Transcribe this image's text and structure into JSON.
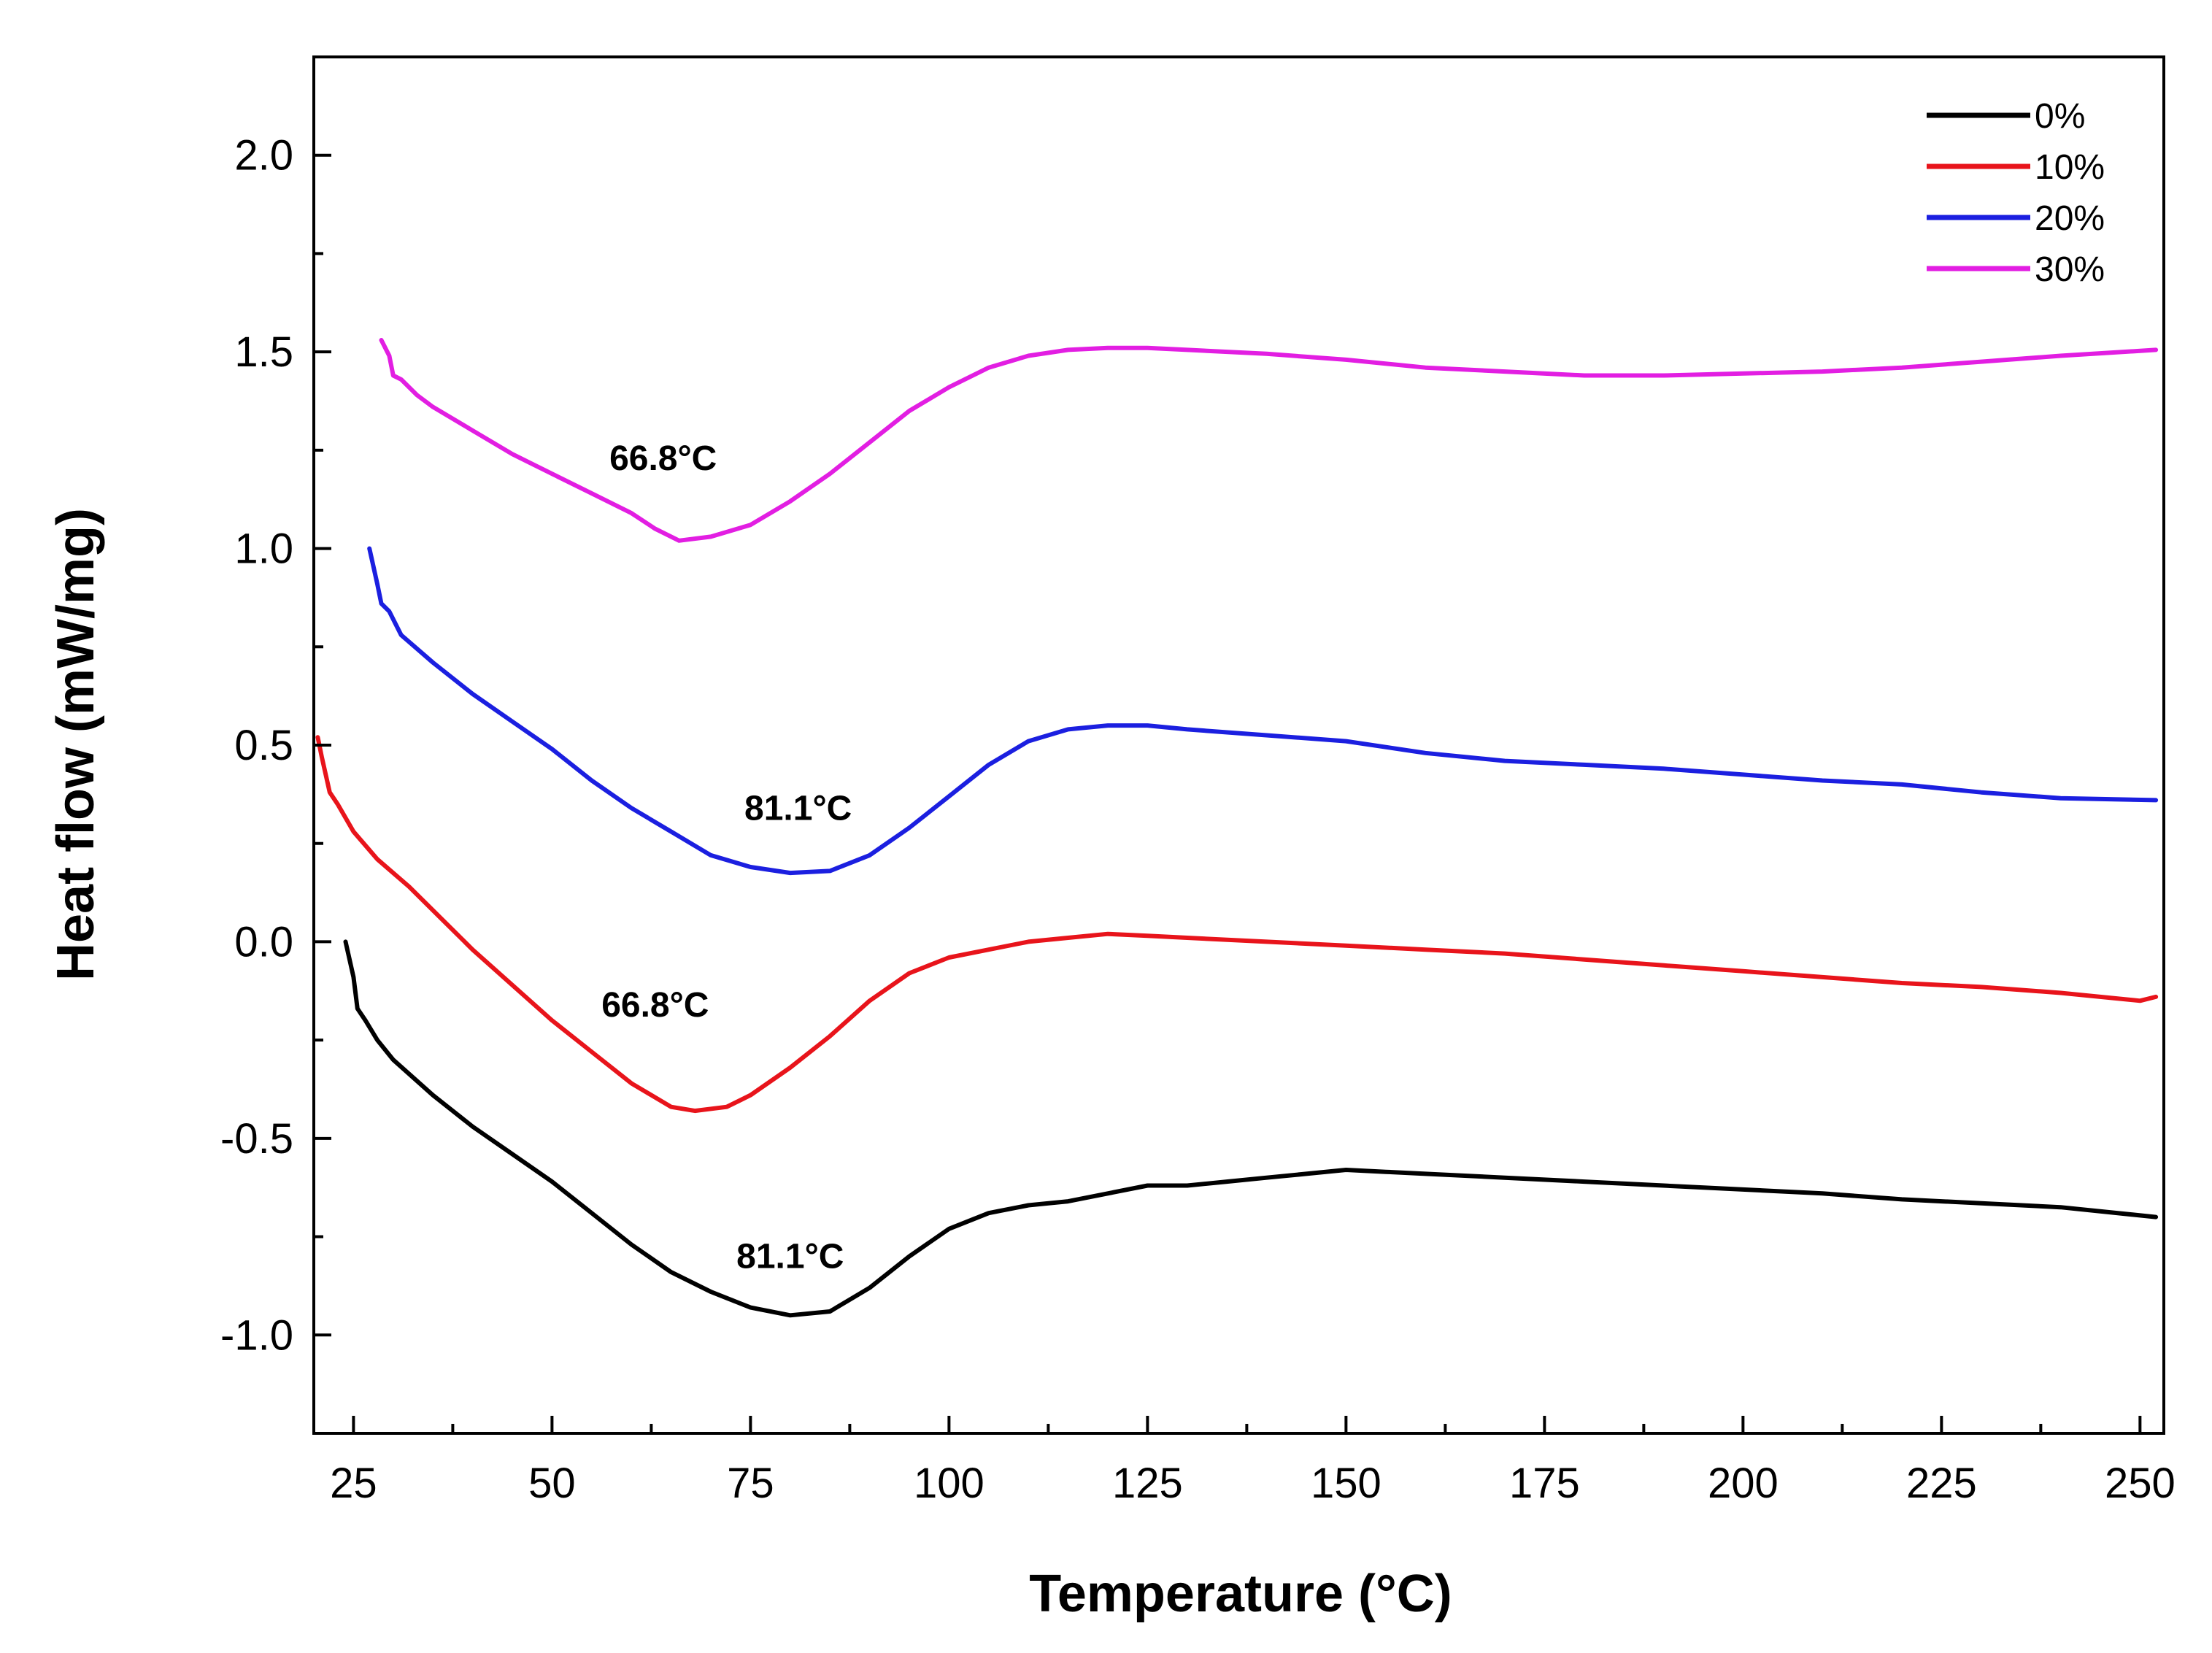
{
  "chart_data": {
    "type": "line",
    "title": "",
    "xlabel": "Temperature (°C)",
    "ylabel": "Heat flow (mW/mg)",
    "xlim": [
      20,
      253
    ],
    "ylim": [
      -1.25,
      2.25
    ],
    "xticks": [
      25,
      50,
      75,
      100,
      125,
      150,
      175,
      200,
      225,
      250
    ],
    "xtick_labels": [
      "25",
      "50",
      "75",
      "100",
      "125",
      "150",
      "175",
      "200",
      "225",
      "250"
    ],
    "yticks": [
      -1.0,
      -0.5,
      0.0,
      0.5,
      1.0,
      1.5,
      2.0
    ],
    "ytick_labels": [
      "-1.0",
      "-0.5",
      "0.0",
      "0.5",
      "1.0",
      "1.5",
      "2.0"
    ],
    "grid": false,
    "legend_position": "top-right",
    "series": [
      {
        "name": "0%",
        "color": "#000000",
        "points": [
          [
            24,
            0.0
          ],
          [
            25,
            -0.09
          ],
          [
            25.5,
            -0.17
          ],
          [
            26.5,
            -0.2
          ],
          [
            28,
            -0.25
          ],
          [
            30,
            -0.3
          ],
          [
            35,
            -0.39
          ],
          [
            40,
            -0.47
          ],
          [
            45,
            -0.54
          ],
          [
            50,
            -0.61
          ],
          [
            55,
            -0.69
          ],
          [
            60,
            -0.77
          ],
          [
            65,
            -0.84
          ],
          [
            70,
            -0.89
          ],
          [
            75,
            -0.93
          ],
          [
            80,
            -0.95
          ],
          [
            85,
            -0.94
          ],
          [
            90,
            -0.88
          ],
          [
            95,
            -0.8
          ],
          [
            100,
            -0.73
          ],
          [
            105,
            -0.69
          ],
          [
            110,
            -0.67
          ],
          [
            115,
            -0.66
          ],
          [
            120,
            -0.64
          ],
          [
            125,
            -0.62
          ],
          [
            130,
            -0.62
          ],
          [
            135,
            -0.61
          ],
          [
            140,
            -0.6
          ],
          [
            145,
            -0.59
          ],
          [
            150,
            -0.58
          ],
          [
            155,
            -0.585
          ],
          [
            160,
            -0.59
          ],
          [
            170,
            -0.6
          ],
          [
            180,
            -0.61
          ],
          [
            190,
            -0.62
          ],
          [
            200,
            -0.63
          ],
          [
            210,
            -0.64
          ],
          [
            220,
            -0.655
          ],
          [
            230,
            -0.665
          ],
          [
            240,
            -0.675
          ],
          [
            252,
            -0.7
          ]
        ]
      },
      {
        "name": "10%",
        "color": "#e8141b",
        "points": [
          [
            20.5,
            0.52
          ],
          [
            21,
            0.47
          ],
          [
            22,
            0.38
          ],
          [
            23,
            0.35
          ],
          [
            25,
            0.28
          ],
          [
            28,
            0.21
          ],
          [
            32,
            0.14
          ],
          [
            36,
            0.06
          ],
          [
            40,
            -0.02
          ],
          [
            45,
            -0.11
          ],
          [
            50,
            -0.2
          ],
          [
            55,
            -0.28
          ],
          [
            60,
            -0.36
          ],
          [
            65,
            -0.42
          ],
          [
            68,
            -0.43
          ],
          [
            72,
            -0.42
          ],
          [
            75,
            -0.39
          ],
          [
            80,
            -0.32
          ],
          [
            85,
            -0.24
          ],
          [
            90,
            -0.15
          ],
          [
            95,
            -0.08
          ],
          [
            100,
            -0.04
          ],
          [
            105,
            -0.02
          ],
          [
            110,
            0.0
          ],
          [
            115,
            0.01
          ],
          [
            120,
            0.02
          ],
          [
            125,
            0.015
          ],
          [
            130,
            0.01
          ],
          [
            140,
            0.0
          ],
          [
            150,
            -0.01
          ],
          [
            160,
            -0.02
          ],
          [
            170,
            -0.03
          ],
          [
            180,
            -0.045
          ],
          [
            190,
            -0.06
          ],
          [
            200,
            -0.075
          ],
          [
            210,
            -0.09
          ],
          [
            220,
            -0.105
          ],
          [
            230,
            -0.115
          ],
          [
            240,
            -0.13
          ],
          [
            250,
            -0.15
          ],
          [
            252,
            -0.14
          ]
        ]
      },
      {
        "name": "20%",
        "color": "#1b1fe0",
        "points": [
          [
            27,
            1.0
          ],
          [
            28,
            0.91
          ],
          [
            28.5,
            0.86
          ],
          [
            29.5,
            0.84
          ],
          [
            31,
            0.78
          ],
          [
            35,
            0.71
          ],
          [
            40,
            0.63
          ],
          [
            45,
            0.56
          ],
          [
            50,
            0.49
          ],
          [
            55,
            0.41
          ],
          [
            60,
            0.34
          ],
          [
            65,
            0.28
          ],
          [
            70,
            0.22
          ],
          [
            75,
            0.19
          ],
          [
            80,
            0.175
          ],
          [
            85,
            0.18
          ],
          [
            90,
            0.22
          ],
          [
            95,
            0.29
          ],
          [
            100,
            0.37
          ],
          [
            105,
            0.45
          ],
          [
            110,
            0.51
          ],
          [
            115,
            0.54
          ],
          [
            120,
            0.55
          ],
          [
            125,
            0.55
          ],
          [
            130,
            0.54
          ],
          [
            140,
            0.525
          ],
          [
            150,
            0.51
          ],
          [
            160,
            0.48
          ],
          [
            170,
            0.46
          ],
          [
            180,
            0.45
          ],
          [
            190,
            0.44
          ],
          [
            200,
            0.425
          ],
          [
            210,
            0.41
          ],
          [
            220,
            0.4
          ],
          [
            230,
            0.38
          ],
          [
            240,
            0.365
          ],
          [
            252,
            0.36
          ]
        ]
      },
      {
        "name": "30%",
        "color": "#e21ee2",
        "points": [
          [
            28.5,
            1.53
          ],
          [
            29.5,
            1.49
          ],
          [
            30,
            1.44
          ],
          [
            31,
            1.43
          ],
          [
            33,
            1.39
          ],
          [
            35,
            1.36
          ],
          [
            40,
            1.3
          ],
          [
            45,
            1.24
          ],
          [
            50,
            1.19
          ],
          [
            55,
            1.14
          ],
          [
            60,
            1.09
          ],
          [
            63,
            1.05
          ],
          [
            66,
            1.02
          ],
          [
            70,
            1.03
          ],
          [
            75,
            1.06
          ],
          [
            80,
            1.12
          ],
          [
            85,
            1.19
          ],
          [
            90,
            1.27
          ],
          [
            95,
            1.35
          ],
          [
            100,
            1.41
          ],
          [
            105,
            1.46
          ],
          [
            110,
            1.49
          ],
          [
            115,
            1.505
          ],
          [
            120,
            1.51
          ],
          [
            125,
            1.51
          ],
          [
            130,
            1.505
          ],
          [
            140,
            1.495
          ],
          [
            150,
            1.48
          ],
          [
            160,
            1.46
          ],
          [
            170,
            1.45
          ],
          [
            180,
            1.44
          ],
          [
            190,
            1.44
          ],
          [
            200,
            1.445
          ],
          [
            210,
            1.45
          ],
          [
            220,
            1.46
          ],
          [
            230,
            1.475
          ],
          [
            240,
            1.49
          ],
          [
            252,
            1.505
          ]
        ]
      }
    ],
    "annotations": [
      {
        "text": "66.8°C",
        "x": 64,
        "y": 1.2
      },
      {
        "text": "81.1°C",
        "x": 81,
        "y": 0.31
      },
      {
        "text": "66.8°C",
        "x": 63,
        "y": -0.19
      },
      {
        "text": "81.1°C",
        "x": 80,
        "y": -0.83
      }
    ]
  }
}
